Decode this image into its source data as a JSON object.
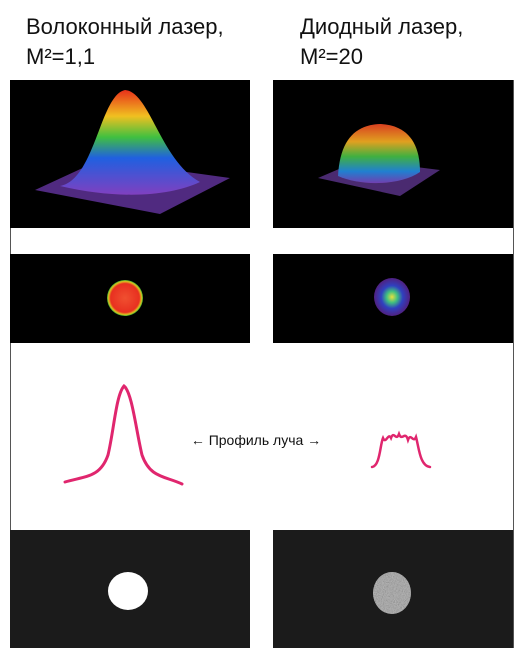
{
  "columns": [
    {
      "title": "Волоконный лазер,",
      "subtitle": "M²=1,1"
    },
    {
      "title": "Диодный лазер,",
      "subtitle": "M²=20"
    }
  ],
  "profile_label": "← Профиль луча →"
}
